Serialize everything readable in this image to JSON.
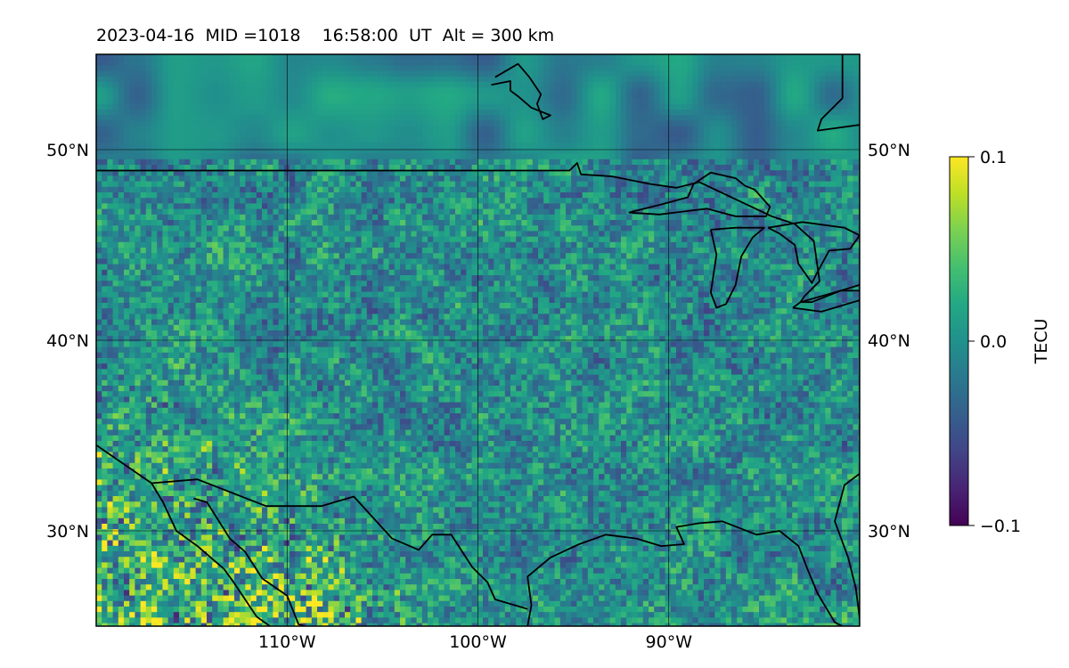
{
  "title": "2023-04-16  MID =1018    16:58:00  UT  Alt = 300 km",
  "map": {
    "lon_range": [
      -120,
      -80
    ],
    "lat_range": [
      25,
      55
    ],
    "lat_ticks": [
      {
        "value": 50,
        "label": "50°N"
      },
      {
        "value": 40,
        "label": "40°N"
      },
      {
        "value": 30,
        "label": "30°N"
      }
    ],
    "lon_ticks": [
      {
        "value": -110,
        "label": "110°W"
      },
      {
        "value": -100,
        "label": "100°W"
      },
      {
        "value": -90,
        "label": "90°W"
      }
    ],
    "grid": true,
    "field": "TEC perturbation grid",
    "colormap": "viridis"
  },
  "colorbar": {
    "label": "TECU",
    "min": -0.1,
    "max": 0.1,
    "ticks": [
      {
        "value": 0.1,
        "label": "0.1"
      },
      {
        "value": 0.0,
        "label": "0.0"
      },
      {
        "value": -0.1,
        "label": "−0.1"
      }
    ]
  },
  "coastlines": {
    "us_canada_border": [
      [
        -120,
        48.9
      ],
      [
        -95.2,
        48.9
      ],
      [
        -94.8,
        49.3
      ],
      [
        -94.6,
        48.7
      ],
      [
        -93,
        48.6
      ],
      [
        -91,
        48.2
      ],
      [
        -89.6,
        48
      ],
      [
        -88.4,
        48.3
      ],
      [
        -84.6,
        46.5
      ],
      [
        -83.4,
        46.1
      ],
      [
        -82.4,
        45.2
      ],
      [
        -82.1,
        43.1
      ],
      [
        -82.9,
        42.3
      ],
      [
        -83.1,
        42
      ],
      [
        -81,
        42.6
      ],
      [
        -80,
        42.9
      ]
    ],
    "hudson_bay": [
      [
        -80.9,
        55
      ],
      [
        -80.9,
        52.7
      ],
      [
        -82,
        51.6
      ],
      [
        -82.2,
        51
      ],
      [
        -80,
        51.3
      ]
    ],
    "james_bay_island": [
      [
        -99.1,
        53.8
      ],
      [
        -97.9,
        54.5
      ],
      [
        -97.3,
        53.8
      ],
      [
        -96.7,
        52.9
      ],
      [
        -96.9,
        52.4
      ],
      [
        -96.6,
        51.6
      ],
      [
        -96.2,
        51.8
      ],
      [
        -97.2,
        52.2
      ],
      [
        -97.9,
        52.8
      ],
      [
        -98.3,
        53.1
      ],
      [
        -98.3,
        53.6
      ],
      [
        -99.3,
        53.4
      ]
    ],
    "lake_superior": [
      [
        -92.1,
        46.7
      ],
      [
        -90.5,
        47.1
      ],
      [
        -89,
        47.5
      ],
      [
        -88.7,
        48.2
      ],
      [
        -87.8,
        48.8
      ],
      [
        -86.5,
        48.5
      ],
      [
        -86,
        48.1
      ],
      [
        -85.5,
        47.9
      ],
      [
        -84.7,
        47
      ],
      [
        -84.9,
        46.5
      ],
      [
        -86.5,
        46.5
      ],
      [
        -88,
        46.9
      ],
      [
        -90.5,
        46.6
      ],
      [
        -92.1,
        46.7
      ]
    ],
    "lake_michigan": [
      [
        -87.8,
        45.8
      ],
      [
        -87.5,
        44.5
      ],
      [
        -87.8,
        42.5
      ],
      [
        -87.5,
        41.7
      ],
      [
        -87,
        41.9
      ],
      [
        -86.5,
        42.9
      ],
      [
        -86.2,
        44.4
      ],
      [
        -85.6,
        45.4
      ],
      [
        -85,
        45.9
      ],
      [
        -86.5,
        45.9
      ],
      [
        -87.8,
        45.8
      ]
    ],
    "lake_huron": [
      [
        -84.8,
        45.9
      ],
      [
        -84.2,
        45.6
      ],
      [
        -83.4,
        45
      ],
      [
        -83.2,
        44
      ],
      [
        -82.5,
        43
      ],
      [
        -82.2,
        43.6
      ],
      [
        -81.6,
        44.7
      ],
      [
        -80.5,
        44.8
      ],
      [
        -80,
        45.5
      ],
      [
        -80.8,
        45.9
      ],
      [
        -83,
        46.2
      ],
      [
        -84.8,
        45.9
      ]
    ],
    "lake_erie": [
      [
        -83.5,
        41.7
      ],
      [
        -82,
        41.5
      ],
      [
        -80,
        42.1
      ],
      [
        -79.6,
        42.6
      ],
      [
        -81,
        42.6
      ],
      [
        -82.5,
        42
      ],
      [
        -83.1,
        42
      ],
      [
        -83.5,
        41.7
      ]
    ],
    "us_mexico_border": [
      [
        -117.1,
        32.5
      ],
      [
        -114.7,
        32.7
      ],
      [
        -111.1,
        31.3
      ],
      [
        -108.2,
        31.3
      ],
      [
        -106.5,
        31.8
      ],
      [
        -104.5,
        29.6
      ],
      [
        -103.1,
        29
      ],
      [
        -102.4,
        29.8
      ],
      [
        -101.4,
        29.8
      ],
      [
        -100.3,
        28.1
      ],
      [
        -99.5,
        27.3
      ],
      [
        -99.1,
        26.4
      ],
      [
        -97.4,
        25.9
      ]
    ],
    "gulf_coast": [
      [
        -97.4,
        25
      ],
      [
        -97.2,
        26.1
      ],
      [
        -97.4,
        27.6
      ],
      [
        -96.2,
        28.6
      ],
      [
        -94.7,
        29.3
      ],
      [
        -93.3,
        29.8
      ],
      [
        -91.7,
        29.6
      ],
      [
        -90.4,
        29.2
      ],
      [
        -89.2,
        29.3
      ],
      [
        -89.6,
        30.2
      ],
      [
        -88.4,
        30.4
      ],
      [
        -87.2,
        30.5
      ],
      [
        -85.4,
        29.8
      ],
      [
        -84.2,
        30
      ],
      [
        -83.2,
        29.2
      ],
      [
        -82.7,
        27.9
      ],
      [
        -82.2,
        26.7
      ],
      [
        -81.3,
        25.2
      ],
      [
        -80.9,
        25
      ]
    ],
    "atlantic_coast": [
      [
        -80,
        25.4
      ],
      [
        -80.2,
        27
      ],
      [
        -80.6,
        28.6
      ],
      [
        -81.3,
        30.5
      ],
      [
        -80.8,
        32.4
      ],
      [
        -80,
        33
      ]
    ],
    "baja_california": [
      [
        -120,
        34.5
      ],
      [
        -117.1,
        32.5
      ],
      [
        -116.5,
        31.5
      ],
      [
        -115.8,
        30
      ],
      [
        -114.7,
        29.2
      ],
      [
        -113.3,
        28
      ],
      [
        -112.8,
        27.3
      ],
      [
        -111.6,
        25.5
      ],
      [
        -110.9,
        25
      ]
    ],
    "gulf_of_california": [
      [
        -114.9,
        31.7
      ],
      [
        -114.2,
        31.5
      ],
      [
        -113,
        29.6
      ],
      [
        -112.2,
        28.9
      ],
      [
        -111.3,
        27.5
      ],
      [
        -110,
        26.6
      ],
      [
        -109.4,
        25.1
      ],
      [
        -109.1,
        25
      ]
    ]
  }
}
